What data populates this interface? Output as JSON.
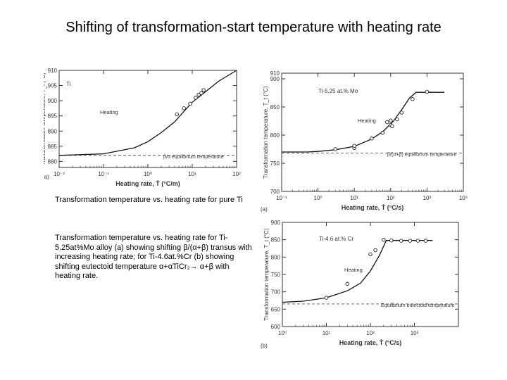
{
  "slide": {
    "title": "Shifting of transformation-start temperature with heating rate",
    "caption_pure_ti": "Transformation temperature vs. heating rate for pure Ti",
    "caption_alloys": "Transformation temperature vs. heating rate for Ti-5.25at%Mo alloy (a) showing shifting β/(α+β) transus with increasing heating rate; for Ti-4.6at.%Cr (b) showing shifting eutectoid temperature α+αTiCr₂→ α+β with heating rate."
  },
  "chart_data": [
    {
      "type": "line",
      "panel_label": "(a)",
      "inset_label": "Ti",
      "curve_label": "Heating",
      "reference_label": "β/α equilibrium temperature",
      "reference_value": 882,
      "xlabel": "Heating rate, Ṫ (°C/m)",
      "ylabel": "Transformation temperature, T_t (°C)",
      "xscale": "log",
      "xlim": [
        0.01,
        100
      ],
      "ylim": [
        878,
        910
      ],
      "xticks": [
        0.01,
        0.1,
        1,
        10,
        100
      ],
      "xtick_labels": [
        "10⁻²",
        "10⁻¹",
        "10⁰",
        "10¹",
        "10²"
      ],
      "yticks": [
        880,
        885,
        890,
        895,
        900,
        905,
        910
      ],
      "ytick_labels": [
        "880",
        "885",
        "890",
        "895",
        "900",
        "905",
        "910"
      ],
      "curve_points": [
        [
          0.01,
          882
        ],
        [
          0.1,
          882.5
        ],
        [
          0.5,
          884.5
        ],
        [
          1,
          886.5
        ],
        [
          2,
          889.5
        ],
        [
          4,
          893
        ],
        [
          7,
          897
        ],
        [
          10,
          899.5
        ],
        [
          20,
          903
        ],
        [
          40,
          906.5
        ],
        [
          100,
          910
        ]
      ],
      "series": [
        {
          "name": "measured",
          "x": [
            4.5,
            6.5,
            9,
            12,
            14,
            16,
            18
          ],
          "y": [
            895.5,
            897.5,
            899,
            901,
            902,
            902.5,
            903.5
          ]
        }
      ]
    },
    {
      "type": "line",
      "panel_label": "(a)",
      "inset_label": "Ti-5.25 at.% Mo",
      "curve_label": "Heating",
      "reference_label": "β/(α+β) equilibrium temperature",
      "reference_value": 768,
      "xlabel": "Heating rate, Ṫ (°C/s)",
      "ylabel": "Transformation temperature, T_t (°C)",
      "xscale": "log",
      "xlim": [
        0.1,
        10000
      ],
      "ylim": [
        700,
        910
      ],
      "xticks": [
        0.1,
        1,
        10,
        100,
        1000,
        10000
      ],
      "xtick_labels": [
        "10⁻¹",
        "10⁰",
        "10¹",
        "10²",
        "10³",
        "10⁴"
      ],
      "yticks": [
        700,
        750,
        800,
        850,
        900
      ],
      "ytick_labels": [
        "700",
        "750",
        "800",
        "850",
        "900"
      ],
      "extra_ytick_label": "910",
      "curve_points": [
        [
          0.1,
          770
        ],
        [
          0.5,
          770
        ],
        [
          1,
          771
        ],
        [
          3,
          774
        ],
        [
          10,
          780
        ],
        [
          30,
          793
        ],
        [
          60,
          806
        ],
        [
          120,
          825
        ],
        [
          200,
          845
        ],
        [
          330,
          866
        ],
        [
          500,
          876
        ],
        [
          3000,
          876
        ]
      ],
      "series": [
        {
          "name": "measured",
          "x": [
            3,
            10,
            10,
            30,
            60,
            80,
            100,
            100,
            110,
            150,
            200,
            400,
            1000
          ],
          "y": [
            775,
            777,
            781,
            794,
            804,
            823,
            826,
            818,
            816,
            828,
            840,
            864,
            877
          ]
        }
      ]
    },
    {
      "type": "line",
      "panel_label": "(b)",
      "inset_label": "Ti-4.6 at.% Cr",
      "curve_label": "Heating",
      "reference_label": "Equilibrium eutectoid temperature",
      "reference_value": 665,
      "xlabel": "Heating rate, Ṫ (°C/s)",
      "ylabel": "Transformation temperature, T_t (°C)",
      "xscale": "log",
      "xlim": [
        1,
        10000
      ],
      "ylim": [
        600,
        900
      ],
      "xticks": [
        1,
        10,
        100,
        1000
      ],
      "xtick_labels": [
        "10⁰",
        "10¹",
        "10²",
        "10³"
      ],
      "yticks": [
        600,
        650,
        700,
        750,
        800,
        850,
        900
      ],
      "ytick_labels": [
        "600",
        "650",
        "700",
        "750",
        "800",
        "850",
        "900"
      ],
      "curve_points": [
        [
          1,
          670
        ],
        [
          3,
          673
        ],
        [
          10,
          683
        ],
        [
          30,
          703
        ],
        [
          60,
          725
        ],
        [
          100,
          760
        ],
        [
          160,
          805
        ],
        [
          230,
          848
        ],
        [
          2600,
          848
        ]
      ],
      "series": [
        {
          "name": "measured",
          "x": [
            10,
            30,
            100,
            130,
            200,
            300,
            500,
            800,
            1200,
            1800
          ],
          "y": [
            683,
            723,
            808,
            820,
            850,
            848,
            847,
            847,
            847,
            847
          ]
        }
      ]
    }
  ]
}
